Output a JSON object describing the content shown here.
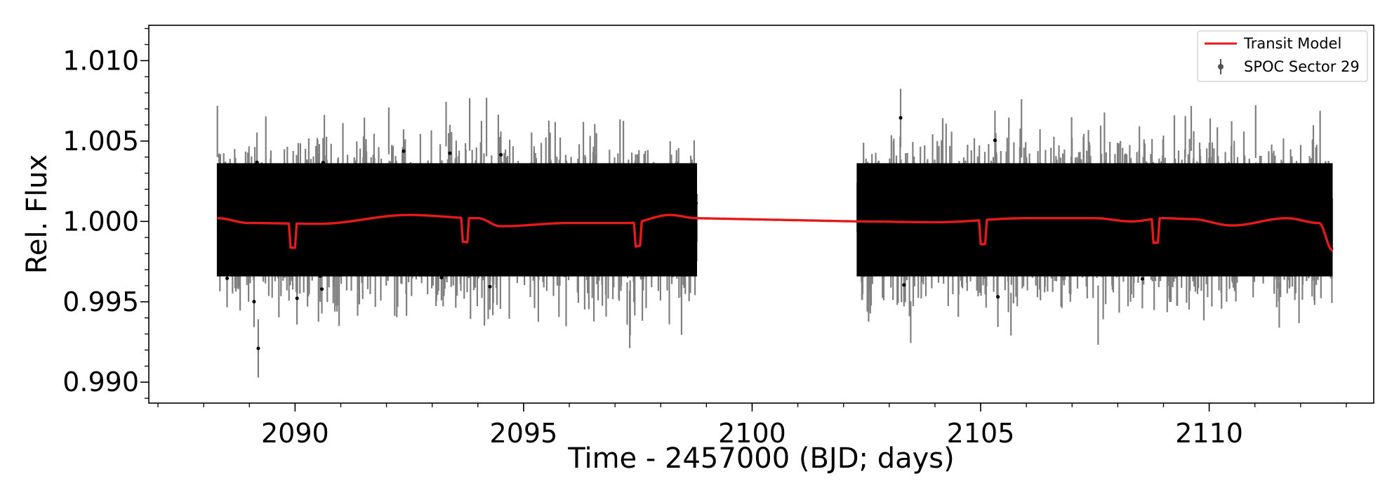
{
  "chart_data": {
    "type": "scatter",
    "title": "",
    "xlabel": "Time - 2457000 (BJD; days)",
    "ylabel": "Rel. Flux",
    "xlim": [
      2086.8,
      2113.6
    ],
    "ylim": [
      0.9887,
      1.0122
    ],
    "xticks": [
      2090,
      2095,
      2100,
      2105,
      2110
    ],
    "xtick_labels": [
      "2090",
      "2095",
      "2100",
      "2105",
      "2110"
    ],
    "yticks": [
      0.99,
      0.995,
      1.0,
      1.005,
      1.01
    ],
    "ytick_labels": [
      "0.990",
      "0.995",
      "1.000",
      "1.005",
      "1.010"
    ],
    "grid": false,
    "legend_position": "top-right",
    "colors": {
      "data": "#000000",
      "model": "#e41a1c"
    },
    "series": [
      {
        "name": "Transit Model",
        "kind": "line",
        "segments_x": [
          [
            2088.3,
            2098.8
          ],
          [
            2102.3,
            2112.7
          ]
        ],
        "baseline_x": [
          2088.3,
          2089.0,
          2090.5,
          2092.5,
          2094.0,
          2094.5,
          2096.0,
          2097.3,
          2098.2,
          2098.8,
          2102.3,
          2104.0,
          2106.0,
          2107.5,
          2108.3,
          2109.0,
          2109.6,
          2110.5,
          2111.7,
          2112.4,
          2112.7
        ],
        "baseline_y": [
          1.0002,
          0.9999,
          0.99985,
          1.0004,
          1.0002,
          0.9997,
          0.9999,
          0.9999,
          1.0004,
          1.0002,
          1.0,
          0.99995,
          1.0002,
          1.0002,
          1.0,
          1.0002,
          1.00015,
          0.99975,
          1.0002,
          0.9999,
          0.9982
        ],
        "transits": [
          {
            "t0": 2089.95,
            "depth": 0.0015
          },
          {
            "t0": 2093.72,
            "depth": 0.0015
          },
          {
            "t0": 2097.5,
            "depth": 0.0015
          },
          {
            "t0": 2105.05,
            "depth": 0.0015
          },
          {
            "t0": 2108.83,
            "depth": 0.0015
          }
        ],
        "transit_duration": 0.17
      },
      {
        "name": "SPOC Sector 29",
        "kind": "errorbar",
        "x_ranges": [
          [
            2088.3,
            2098.8
          ],
          [
            2102.3,
            2112.7
          ]
        ],
        "median_flux": 1.0001,
        "scatter_sigma": 0.0022,
        "error_bar": 0.0015,
        "y_min": 0.9893,
        "y_max": 1.0112
      }
    ]
  }
}
